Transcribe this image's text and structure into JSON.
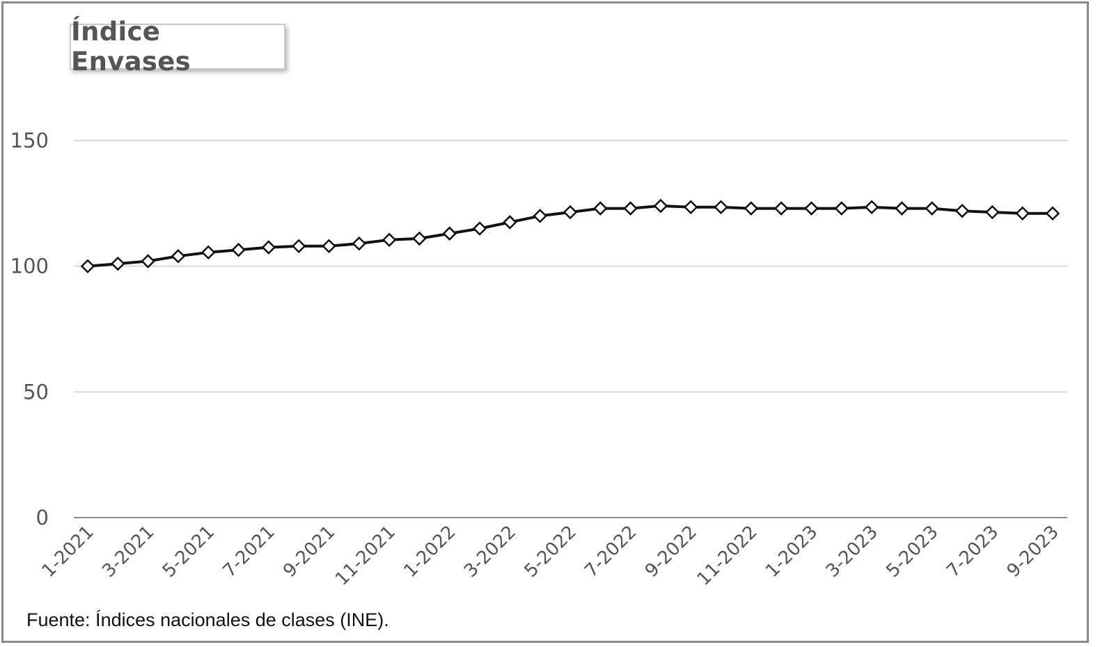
{
  "chart_data": {
    "type": "line",
    "title": "Índice Envases",
    "xlabel": "",
    "ylabel": "",
    "ylim": [
      0,
      150
    ],
    "yticks": [
      0,
      50,
      100,
      150
    ],
    "grid": true,
    "legend": "none",
    "categories": [
      "1-2021",
      "2-2021",
      "3-2021",
      "4-2021",
      "5-2021",
      "6-2021",
      "7-2021",
      "8-2021",
      "9-2021",
      "10-2021",
      "11-2021",
      "12-2021",
      "1-2022",
      "2-2022",
      "3-2022",
      "4-2022",
      "5-2022",
      "6-2022",
      "7-2022",
      "8-2022",
      "9-2022",
      "10-2022",
      "11-2022",
      "12-2022",
      "1-2023",
      "2-2023",
      "3-2023",
      "4-2023",
      "5-2023",
      "6-2023",
      "7-2023",
      "8-2023",
      "9-2023"
    ],
    "xtick_labels": [
      "1-2021",
      "3-2021",
      "5-2021",
      "7-2021",
      "9-2021",
      "11-2021",
      "1-2022",
      "3-2022",
      "5-2022",
      "7-2022",
      "9-2022",
      "11-2022",
      "1-2023",
      "3-2023",
      "5-2023",
      "7-2023",
      "9-2023"
    ],
    "series": [
      {
        "values": [
          100.0,
          101.0,
          102.0,
          104.0,
          105.5,
          106.5,
          107.5,
          108.0,
          108.0,
          109.0,
          110.5,
          111.0,
          113.0,
          115.0,
          117.5,
          120.0,
          121.5,
          123.0,
          123.0,
          124.0,
          123.5,
          123.5,
          123.0,
          123.0,
          123.0,
          123.0,
          123.5,
          123.0,
          123.0,
          122.0,
          121.5,
          121.0,
          121.0
        ],
        "color": "#111111",
        "marker": "diamond-open"
      }
    ]
  },
  "source_note": "Fuente: Índices nacionales de clases (INE).",
  "colors": {
    "gridline": "#d9d9d9",
    "axis": "#8c8c8c",
    "text": "#555555",
    "frame": "#8a8a8a",
    "line": "#111111"
  }
}
